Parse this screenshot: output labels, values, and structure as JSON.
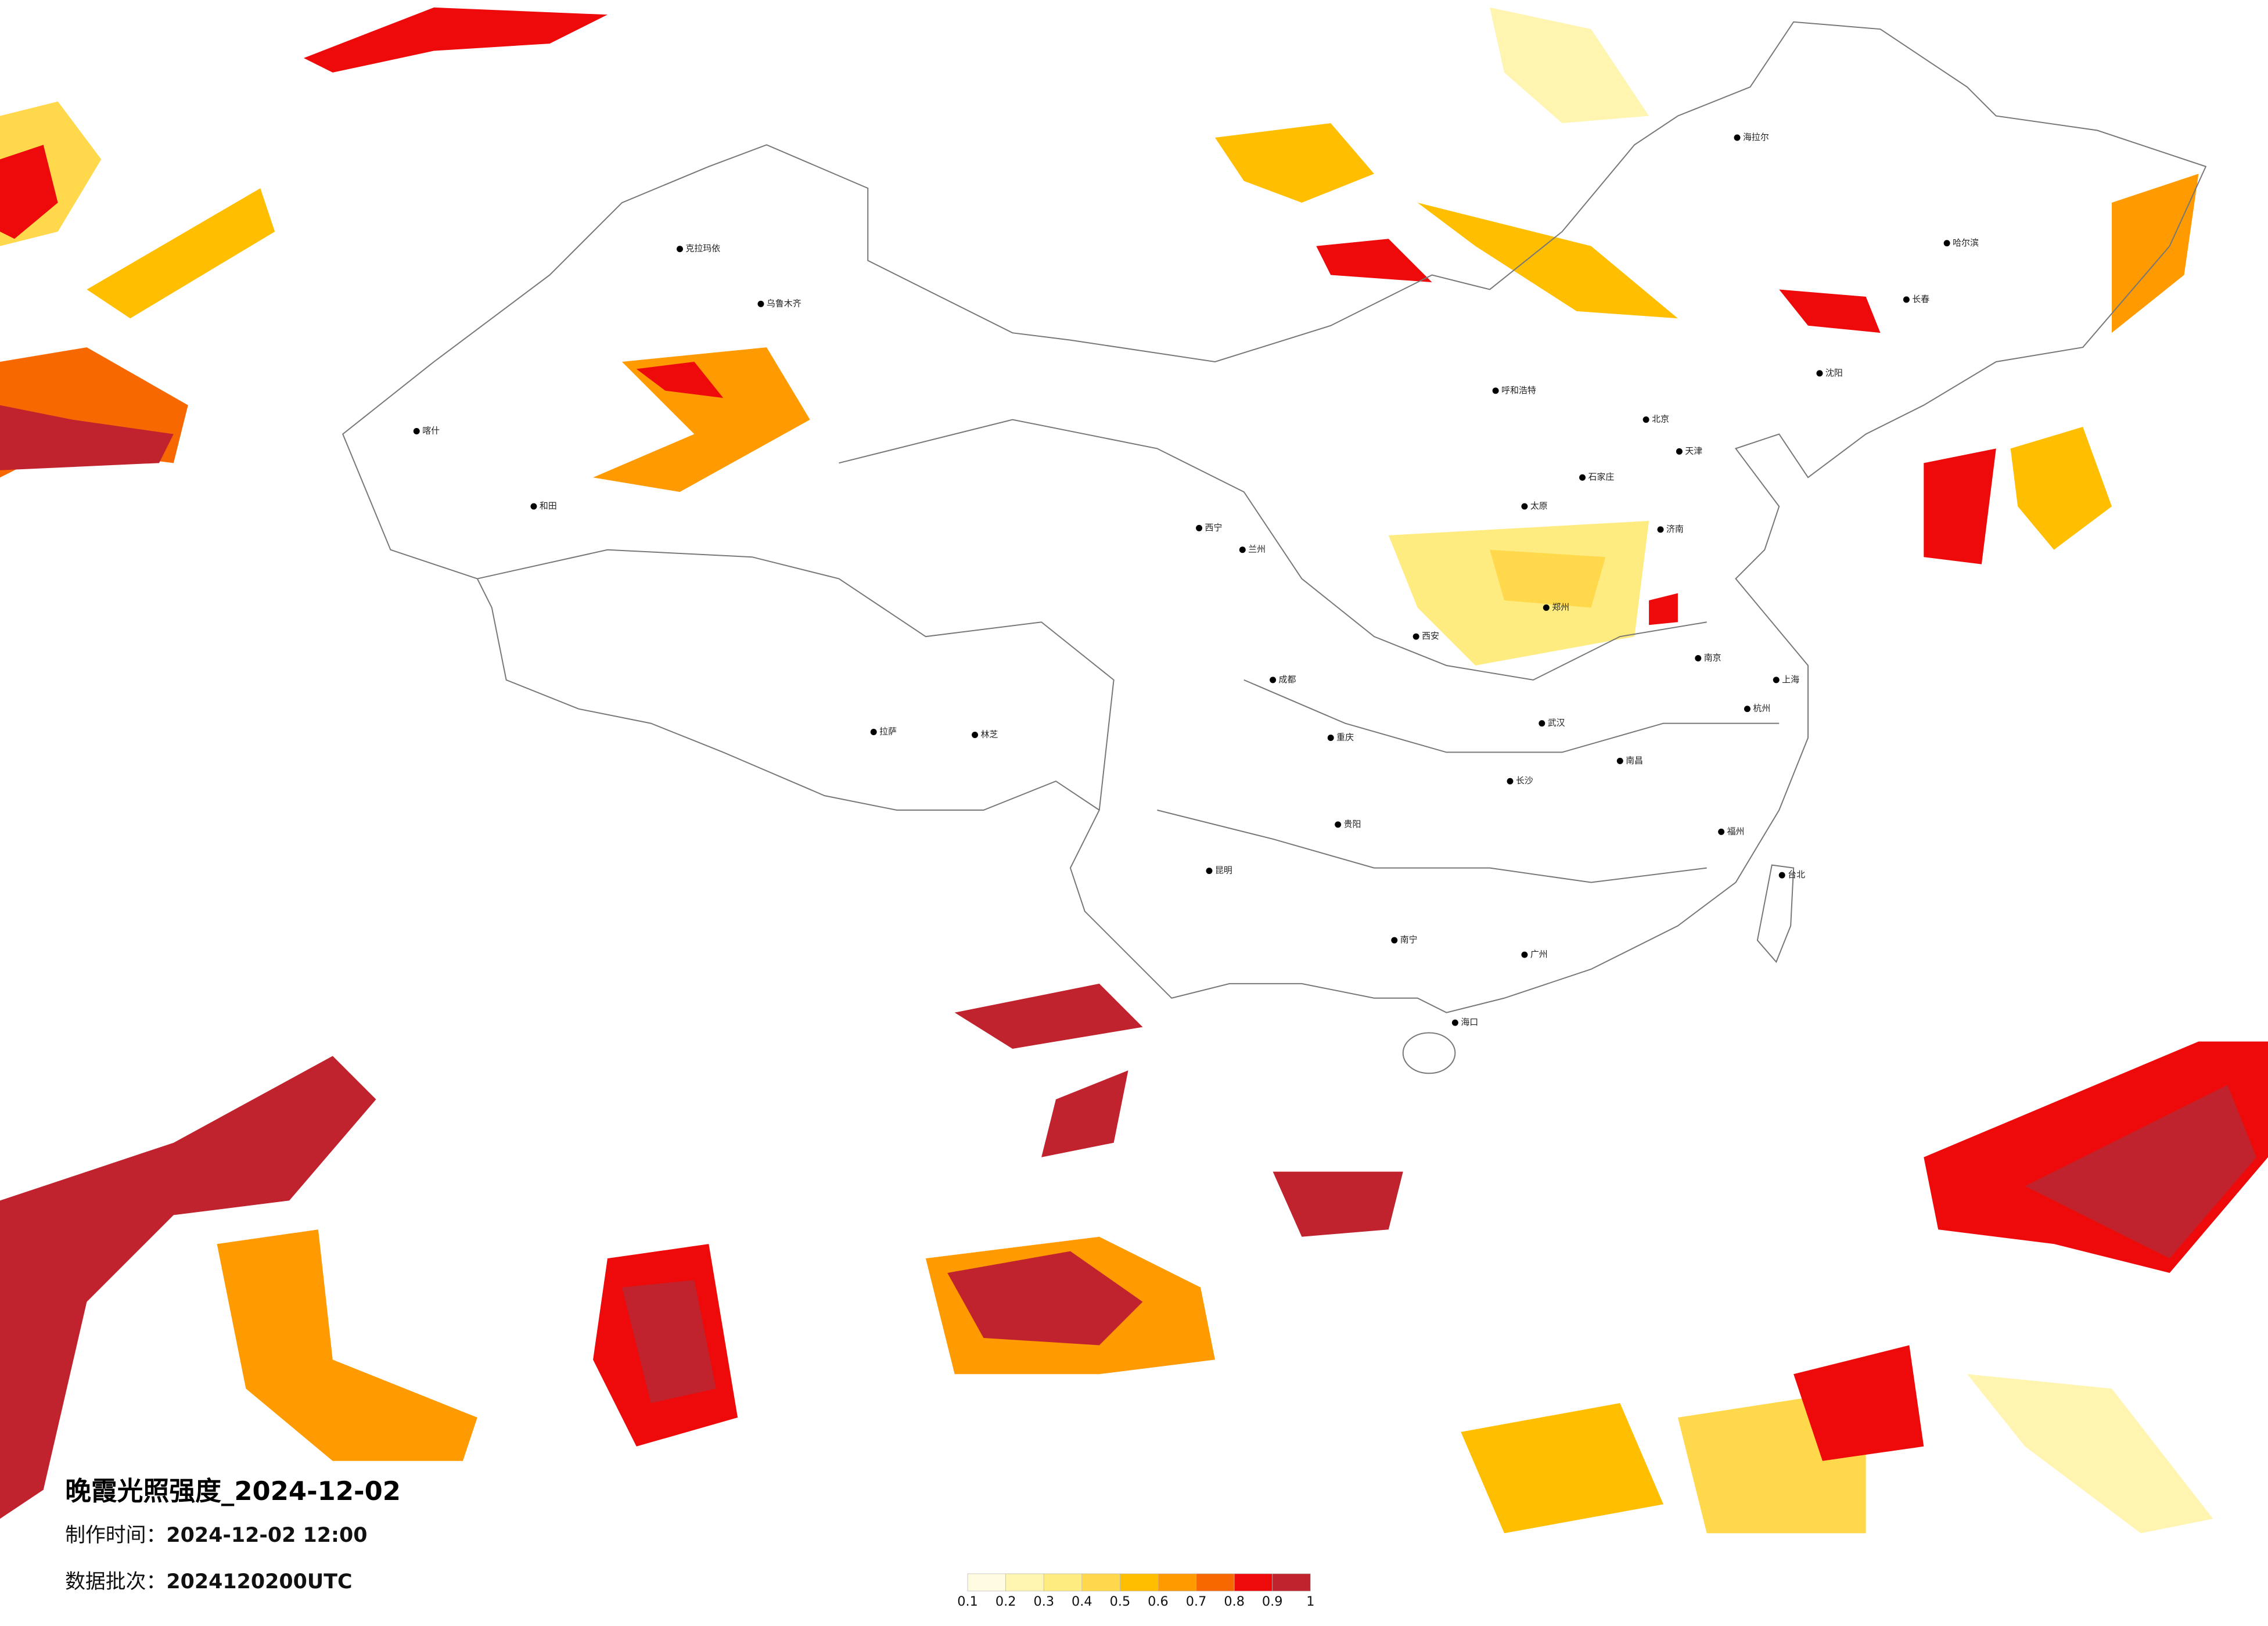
{
  "header": {
    "title": "晚霞光照强度_2024-12-02",
    "made_label": "制作时间：",
    "made_time": "2024-12-02 12:00",
    "batch_label": "数据批次：",
    "batch": "2024120200UTC"
  },
  "colorbar": {
    "ticks": [
      0.1,
      0.2,
      0.3,
      0.4,
      0.5,
      0.6,
      0.7,
      0.8,
      0.9,
      1
    ],
    "colors": [
      "#fffbe0",
      "#fff5b0",
      "#ffec80",
      "#ffd84c",
      "#ffbf00",
      "#ff9a00",
      "#f76800",
      "#ee0a0a",
      "#c0232d"
    ]
  },
  "cities": [
    "海拉尔",
    "哈尔滨",
    "长春",
    "沈阳",
    "北京",
    "天津",
    "呼和浩特",
    "石家庄",
    "太原",
    "济南",
    "郑州",
    "西安",
    "兰州",
    "西宁",
    "乌鲁木齐",
    "克拉玛依",
    "喀什",
    "和田",
    "拉萨",
    "林芝",
    "成都",
    "重庆",
    "贵阳",
    "昆明",
    "南宁",
    "海口",
    "长沙",
    "武汉",
    "南昌",
    "福州",
    "杭州",
    "南京",
    "上海",
    "广州",
    "台北"
  ]
}
